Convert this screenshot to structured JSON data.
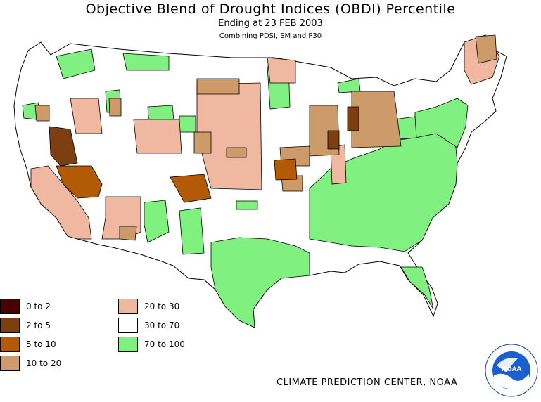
{
  "header": {
    "title": "Objective Blend of Drought Indices (OBDI) Percentile",
    "subtitle": "Ending at 23 FEB 2003",
    "subtitle2": "Combining PDSI, SM and P30"
  },
  "legend": {
    "items": [
      {
        "label": "0 to 2",
        "color": "#4a0000"
      },
      {
        "label": "2 to 5",
        "color": "#7d3f10"
      },
      {
        "label": "5 to 10",
        "color": "#b25a05"
      },
      {
        "label": "10 to 20",
        "color": "#cd9a6a"
      },
      {
        "label": "20 to 30",
        "color": "#f0b8a0"
      },
      {
        "label": "30 to 70",
        "color": "#ffffff"
      },
      {
        "label": "70 to 100",
        "color": "#80f080"
      }
    ]
  },
  "footer": {
    "credit": "CLIMATE PREDICTION CENTER, NOAA",
    "logo_text": "NOAA"
  }
}
